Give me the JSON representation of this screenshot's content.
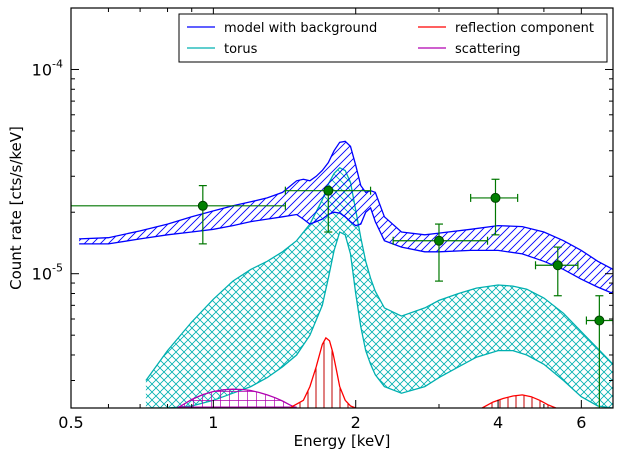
{
  "chart_data": {
    "type": "line",
    "title": "",
    "xlabel": "Energy [keV]",
    "ylabel": "Count rate [cts/s/keV]",
    "x_scale": "log",
    "y_scale": "log",
    "xlim": [
      0.5,
      7.0
    ],
    "ylim": [
      2.2e-06,
      0.0002
    ],
    "grid": false,
    "legend_position": "top-right",
    "x_ticks": [
      {
        "value": 0.5,
        "label": "0.5"
      },
      {
        "value": 1,
        "label": "1"
      },
      {
        "value": 2,
        "label": "2"
      },
      {
        "value": 4,
        "label": "4"
      },
      {
        "value": 6,
        "label": "6"
      }
    ],
    "y_ticks": [
      {
        "value": 1e-05,
        "base": "10",
        "exp": "-5"
      },
      {
        "value": 0.0001,
        "base": "10",
        "exp": "-4"
      }
    ],
    "series": [
      {
        "name": "model with background",
        "color": "#0000ff",
        "hatch": "diagonal",
        "x": [
          0.52,
          0.6,
          0.7,
          0.8,
          0.9,
          1.0,
          1.1,
          1.2,
          1.3,
          1.4,
          1.5,
          1.55,
          1.6,
          1.65,
          1.7,
          1.75,
          1.8,
          1.85,
          1.9,
          1.95,
          2.0,
          2.05,
          2.1,
          2.15,
          2.2,
          2.3,
          2.5,
          2.8,
          3.0,
          3.5,
          4.0,
          4.5,
          5.0,
          5.5,
          6.0,
          6.5,
          7.0
        ],
        "upper": [
          1.48e-05,
          1.5e-05,
          1.62e-05,
          1.75e-05,
          1.9e-05,
          2.03e-05,
          2.15e-05,
          2.25e-05,
          2.35e-05,
          2.5e-05,
          2.85e-05,
          2.9e-05,
          2.85e-05,
          3e-05,
          3.2e-05,
          3.5e-05,
          4e-05,
          4.4e-05,
          4.45e-05,
          4.2e-05,
          3.4e-05,
          2.7e-05,
          2.5e-05,
          2.55e-05,
          2.5e-05,
          1.9e-05,
          1.6e-05,
          1.55e-05,
          1.58e-05,
          1.65e-05,
          1.72e-05,
          1.7e-05,
          1.6e-05,
          1.45e-05,
          1.3e-05,
          1.15e-05,
          1.05e-05
        ],
        "lower": [
          1.4e-05,
          1.4e-05,
          1.48e-05,
          1.55e-05,
          1.6e-05,
          1.65e-05,
          1.72e-05,
          1.8e-05,
          1.85e-05,
          1.9e-05,
          1.95e-05,
          1.85e-05,
          1.75e-05,
          1.8e-05,
          1.85e-05,
          1.95e-05,
          2e-05,
          1.98e-05,
          1.9e-05,
          1.8e-05,
          1.72e-05,
          1.75e-05,
          2e-05,
          2.1e-05,
          1.8e-05,
          1.45e-05,
          1.35e-05,
          1.28e-05,
          1.28e-05,
          1.3e-05,
          1.3e-05,
          1.25e-05,
          1.15e-05,
          1.05e-05,
          9.4e-06,
          8.6e-06,
          8e-06
        ],
        "mid": [
          1.44e-05,
          1.45e-05,
          1.55e-05,
          1.65e-05,
          1.75e-05,
          1.85e-05,
          1.93e-05,
          2e-05,
          2.08e-05,
          2.18e-05,
          2.45e-05,
          2.45e-05,
          2.35e-05,
          2.45e-05,
          2.6e-05,
          2.9e-05,
          3.3e-05,
          3.5e-05,
          3.4e-05,
          3e-05,
          2.5e-05,
          2.2e-05,
          2.25e-05,
          2.3e-05,
          2.1e-05,
          1.65e-05,
          1.46e-05,
          1.4e-05,
          1.42e-05,
          1.47e-05,
          1.5e-05,
          1.48e-05,
          1.38e-05,
          1.26e-05,
          1.12e-05,
          1e-05,
          9.2e-06
        ]
      },
      {
        "name": "torus",
        "color": "#00b0b0",
        "hatch": "cross",
        "x": [
          0.72,
          0.8,
          0.9,
          1.0,
          1.1,
          1.2,
          1.3,
          1.4,
          1.5,
          1.6,
          1.7,
          1.75,
          1.8,
          1.85,
          1.9,
          1.95,
          2.0,
          2.05,
          2.1,
          2.15,
          2.2,
          2.3,
          2.5,
          2.8,
          3.0,
          3.3,
          3.6,
          4.0,
          4.3,
          4.6,
          5.0,
          5.5,
          6.0,
          6.5,
          7.0
        ],
        "upper": [
          3e-06,
          4.2e-06,
          5.8e-06,
          7.5e-06,
          9.2e-06,
          1.05e-05,
          1.15e-05,
          1.28e-05,
          1.45e-05,
          1.75e-05,
          2.3e-05,
          2.75e-05,
          3.1e-05,
          3.3e-05,
          3.2e-05,
          2.8e-05,
          2.05e-05,
          1.5e-05,
          1.15e-05,
          9.5e-06,
          8.2e-06,
          6.8e-06,
          6.2e-06,
          6.8e-06,
          7.4e-06,
          8e-06,
          8.5e-06,
          8.8e-06,
          8.7e-06,
          8.4e-06,
          7.6e-06,
          6.4e-06,
          5.2e-06,
          4.3e-06,
          3.6e-06
        ],
        "lower": [
          2.2e-06,
          2.2e-06,
          2.25e-06,
          2.4e-06,
          2.6e-06,
          2.8e-06,
          3.1e-06,
          3.5e-06,
          4e-06,
          5e-06,
          7e-06,
          9.5e-06,
          1.3e-05,
          1.6e-05,
          1.55e-05,
          1.25e-05,
          8e-06,
          5.5e-06,
          4.2e-06,
          3.6e-06,
          3.2e-06,
          2.8e-06,
          2.6e-06,
          2.8e-06,
          3.1e-06,
          3.5e-06,
          3.9e-06,
          4.2e-06,
          4.2e-06,
          4e-06,
          3.6e-06,
          3e-06,
          2.5e-06,
          2.25e-06,
          2.2e-06
        ]
      },
      {
        "name": "reflection component",
        "color": "#ff0000",
        "hatch": "vertical",
        "components": [
          {
            "x": [
              1.45,
              1.55,
              1.6,
              1.65,
              1.7,
              1.73,
              1.76,
              1.79,
              1.82,
              1.85,
              1.9,
              1.95,
              2.0
            ],
            "y": [
              2.2e-06,
              2.4e-06,
              2.8e-06,
              3.5e-06,
              4.5e-06,
              4.85e-06,
              4.7e-06,
              4.1e-06,
              3.4e-06,
              2.8e-06,
              2.4e-06,
              2.25e-06,
              2.2e-06
            ]
          },
          {
            "x": [
              3.7,
              3.9,
              4.1,
              4.3,
              4.5,
              4.7,
              4.9,
              5.1,
              5.3
            ],
            "y": [
              2.2e-06,
              2.35e-06,
              2.45e-06,
              2.52e-06,
              2.55e-06,
              2.5e-06,
              2.4e-06,
              2.28e-06,
              2.2e-06
            ]
          }
        ]
      },
      {
        "name": "scattering",
        "color": "#b000b0",
        "hatch": "vertical",
        "x": [
          0.84,
          0.9,
          0.95,
          1.0,
          1.05,
          1.1,
          1.15,
          1.2,
          1.25,
          1.3,
          1.35,
          1.4,
          1.45,
          1.5
        ],
        "y": [
          2.2e-06,
          2.42e-06,
          2.56e-06,
          2.65e-06,
          2.7e-06,
          2.72e-06,
          2.71e-06,
          2.68e-06,
          2.62e-06,
          2.55e-06,
          2.47e-06,
          2.38e-06,
          2.28e-06,
          2.2e-06
        ],
        "baseline": {
          "x": [
            0.84,
            1.5
          ],
          "y": 2.22e-06
        }
      },
      {
        "name": "data",
        "color": "#007700",
        "marker": "circle",
        "points": [
          {
            "x": 0.95,
            "xlo": 0.5,
            "xhi": 1.42,
            "y": 2.15e-05,
            "ylo": 1.4e-05,
            "yhi": 2.7e-05
          },
          {
            "x": 1.75,
            "xlo": 1.42,
            "xhi": 2.15,
            "y": 2.55e-05,
            "ylo": 1.6e-05,
            "yhi": 2.6e-05
          },
          {
            "x": 3.0,
            "xlo": 2.4,
            "xhi": 3.8,
            "y": 1.45e-05,
            "ylo": 9.2e-06,
            "yhi": 1.75e-05
          },
          {
            "x": 3.95,
            "xlo": 3.5,
            "xhi": 4.4,
            "y": 2.35e-05,
            "ylo": 1.55e-05,
            "yhi": 2.9e-05
          },
          {
            "x": 5.35,
            "xlo": 4.8,
            "xhi": 5.9,
            "y": 1.1e-05,
            "ylo": 7.8e-06,
            "yhi": 1.35e-05
          },
          {
            "x": 6.55,
            "xlo": 6.15,
            "xhi": 7.0,
            "y": 5.9e-06,
            "ylo": 2.2e-06,
            "yhi": 7.8e-06
          }
        ]
      }
    ],
    "legend": [
      {
        "label": "model with background",
        "color": "#0000ff"
      },
      {
        "label": "reflection component",
        "color": "#ff0000"
      },
      {
        "label": "torus",
        "color": "#00b0b0"
      },
      {
        "label": "scattering",
        "color": "#b000b0"
      }
    ]
  }
}
